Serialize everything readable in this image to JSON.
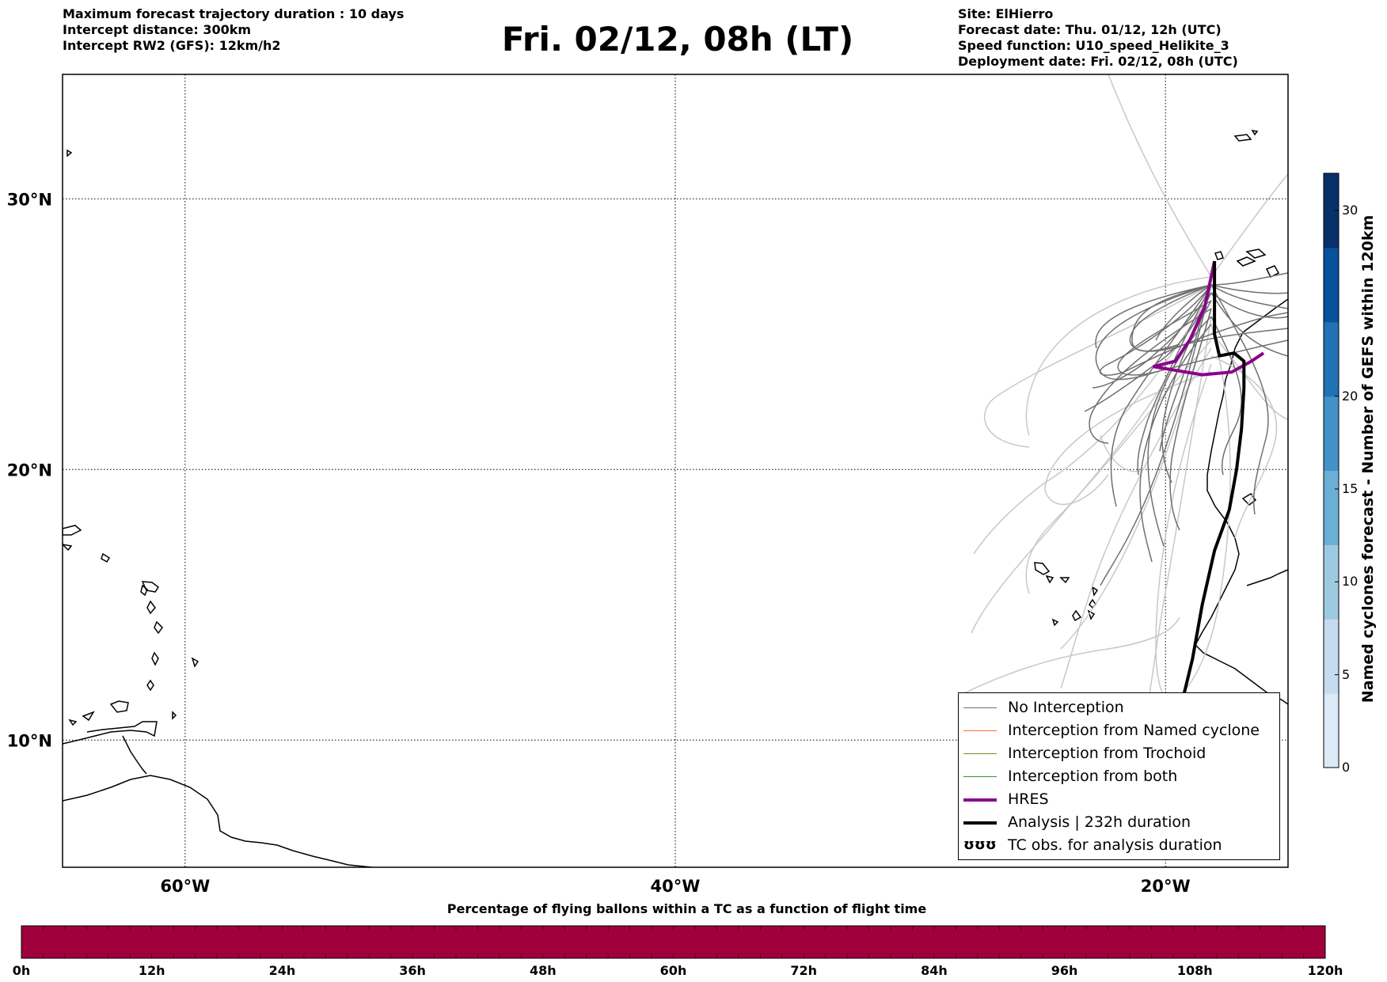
{
  "header_left": [
    "Maximum forecast trajectory duration : 10 days",
    "Intercept distance: 300km",
    "Intercept RW2 (GFS):  12km/h2"
  ],
  "header_right": [
    "Site: ElHierro",
    "Forecast date: Thu. 01/12, 12h (UTC)",
    "Speed function: U10_speed_Helikite_3",
    "Deployment date: Fri. 02/12, 08h (UTC)"
  ],
  "title": "Fri. 02/12, 08h (LT)",
  "map": {
    "lon_range": [
      -65,
      -15
    ],
    "lat_range": [
      5.3,
      34.6
    ],
    "lon_ticks": [
      {
        "value": -60,
        "label": "60°W"
      },
      {
        "value": -40,
        "label": "40°W"
      },
      {
        "value": -20,
        "label": "20°W"
      }
    ],
    "lat_ticks": [
      {
        "value": 30,
        "label": "30°N"
      },
      {
        "value": 20,
        "label": "20°N"
      },
      {
        "value": 10,
        "label": "10°N"
      }
    ],
    "grid": "dotted"
  },
  "legend": {
    "items": [
      {
        "label": "No Interception",
        "color": "#707070",
        "width": 1.5
      },
      {
        "label": "Interception from Named cyclone",
        "color": "#ff6a2a",
        "width": 1.5
      },
      {
        "label": "Interception from Trochoid",
        "color": "#8a8a2a",
        "width": 1.5
      },
      {
        "label": "Interception from both",
        "color": "#2a9a3a",
        "width": 1.5
      },
      {
        "label": "HRES",
        "color": "#8b008b",
        "width": 4
      },
      {
        "label": "Analysis | 232h duration",
        "color": "#000000",
        "width": 4
      }
    ],
    "tc_symbol": "ʊʊʊ",
    "tc_label": "TC obs. for analysis duration"
  },
  "colorbar": {
    "title": "Named cyclones forecast - Number of GEFS within 120km",
    "range": [
      0,
      32
    ],
    "ticks": [
      "0",
      "5",
      "10",
      "15",
      "20",
      "30"
    ],
    "tick_values": [
      0,
      5,
      10,
      15,
      20,
      30
    ],
    "colors": [
      "#dce9f6",
      "#c6dbef",
      "#9ecae1",
      "#6baed6",
      "#4292c6",
      "#2171b5",
      "#08519c",
      "#08306b"
    ]
  },
  "percent_bar": {
    "title": "Percentage of flying ballons within a TC as a function of flight time",
    "ticks": [
      "0h",
      "12h",
      "24h",
      "36h",
      "48h",
      "60h",
      "72h",
      "84h",
      "96h",
      "108h",
      "120h"
    ],
    "segments": 60,
    "color": "#a0003c"
  },
  "chart_data": {
    "type": "line",
    "series": [
      {
        "name": "HRES",
        "lon": [
          -18.0,
          -18.4,
          -19.0,
          -19.6,
          -20.5,
          -18.5,
          -17.3,
          -16.5,
          -16.0
        ],
        "lat": [
          27.7,
          26.0,
          24.8,
          24.0,
          23.8,
          23.5,
          23.6,
          24.0,
          24.3
        ]
      },
      {
        "name": "Analysis | 232h duration",
        "lon": [
          -18.0,
          -18.0,
          -17.8,
          -17.2,
          -16.8,
          -16.8,
          -16.9,
          -17.1,
          -17.4,
          -18.0,
          -18.5,
          -18.9,
          -19.3
        ],
        "lat": [
          27.7,
          25.0,
          24.2,
          24.3,
          24.0,
          23.0,
          21.5,
          20.0,
          18.5,
          17.0,
          15.0,
          13.0,
          11.5
        ]
      }
    ]
  }
}
